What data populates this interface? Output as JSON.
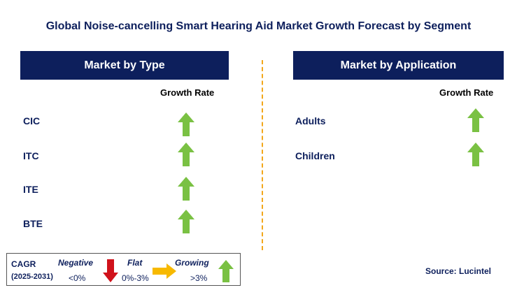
{
  "title": "Global Noise-cancelling Smart Hearing Aid Market Growth Forecast by Segment",
  "left_panel": {
    "header": "Market by Type",
    "growth_label": "Growth Rate",
    "items": [
      {
        "label": "CIC",
        "trend": "growing"
      },
      {
        "label": "ITC",
        "trend": "growing"
      },
      {
        "label": "ITE",
        "trend": "growing"
      },
      {
        "label": "BTE",
        "trend": "growing"
      }
    ]
  },
  "right_panel": {
    "header": "Market by Application",
    "growth_label": "Growth Rate",
    "items": [
      {
        "label": "Adults",
        "trend": "growing"
      },
      {
        "label": "Children",
        "trend": "growing"
      }
    ]
  },
  "legend": {
    "cagr_label": "CAGR",
    "period": "(2025-2031)",
    "negative_label": "Negative",
    "negative_range": "<0%",
    "flat_label": "Flat",
    "flat_range": "0%-3%",
    "growing_label": "Growing",
    "growing_range": ">3%"
  },
  "source": "Source: Lucintel",
  "colors": {
    "navy": "#0d1f5c",
    "growing": "#7ac143",
    "negative": "#d0121b",
    "flat": "#f7b900",
    "divider": "#f2a71b"
  },
  "icons": {
    "growing": "up-arrow-icon",
    "negative": "down-arrow-icon",
    "flat": "right-arrow-icon"
  }
}
